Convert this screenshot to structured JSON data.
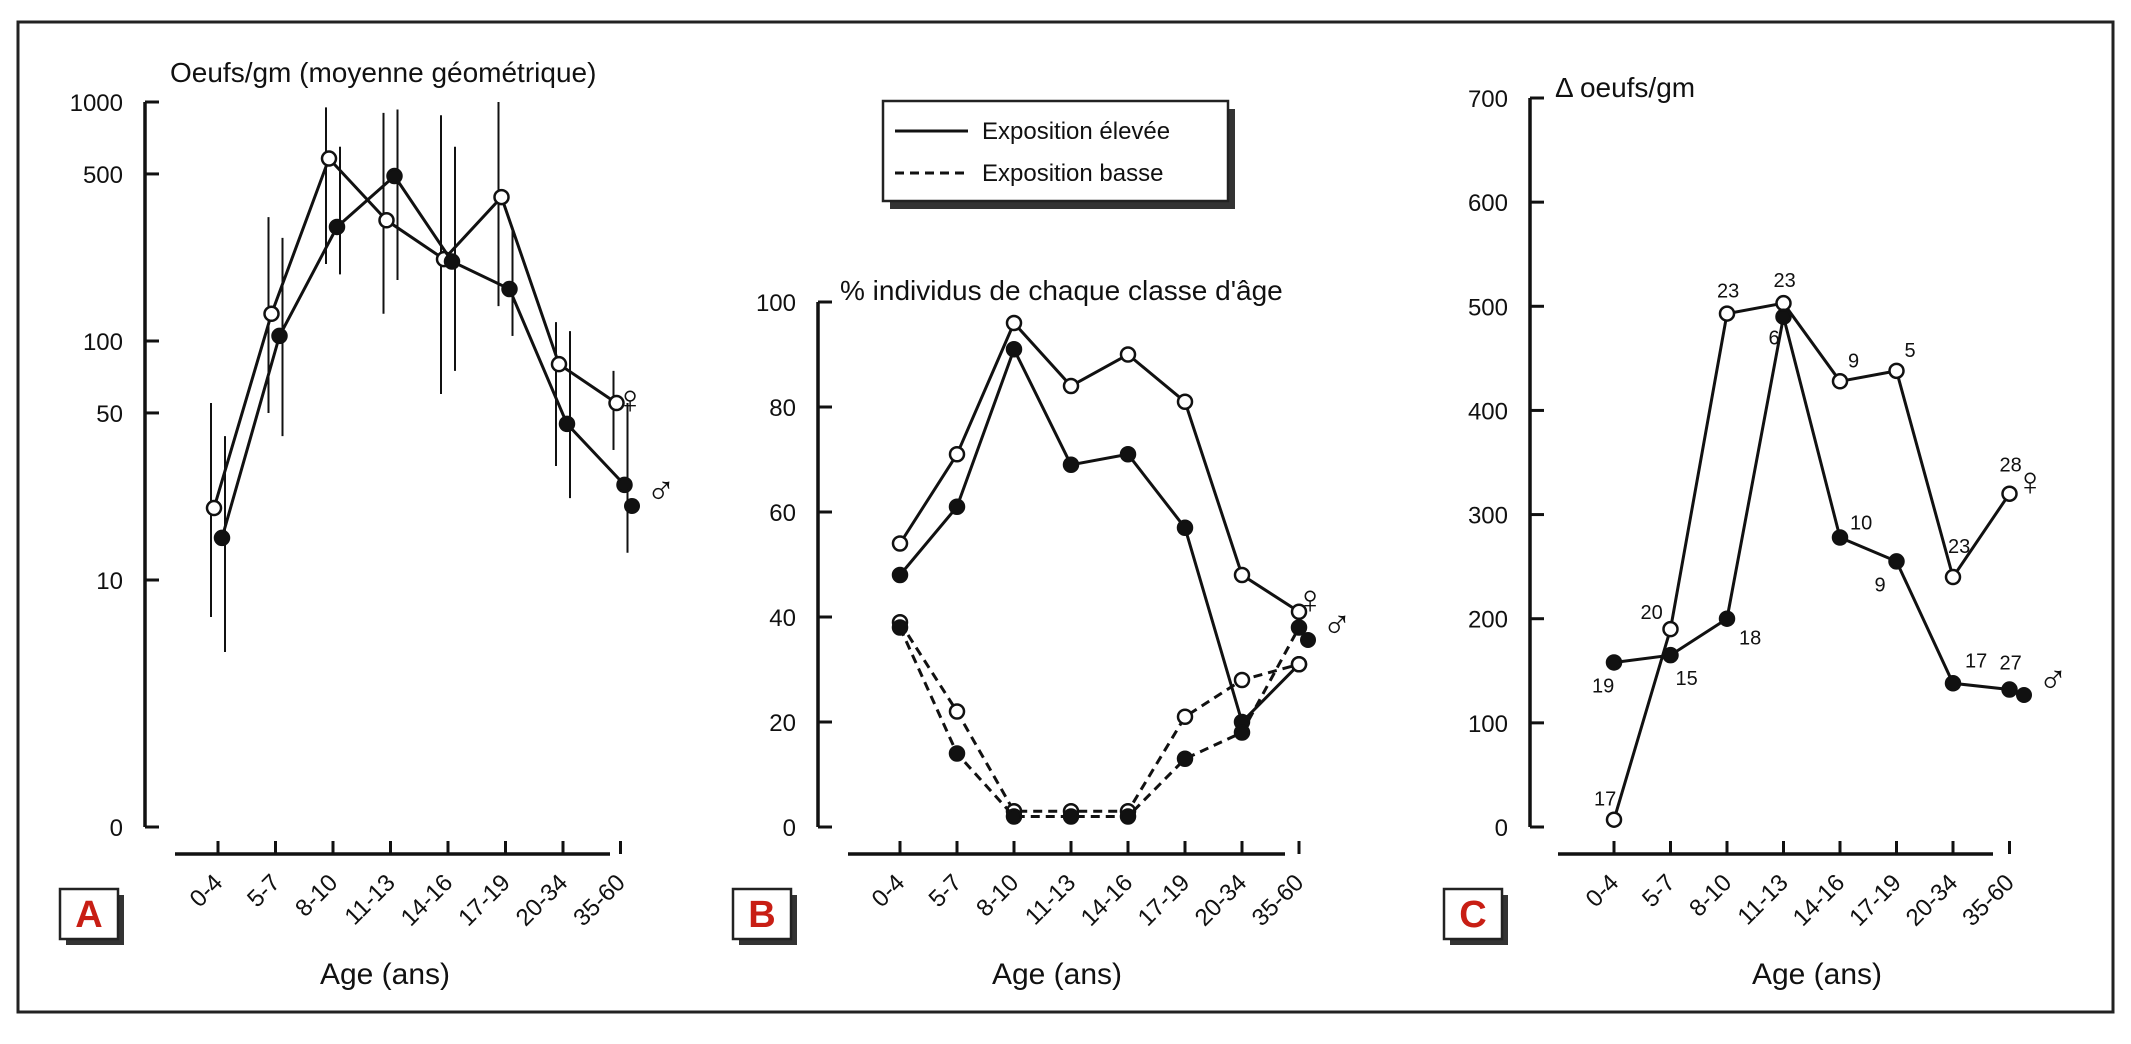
{
  "figure_frame": "single bordered figure with three panels A, B, C",
  "chart_data": [
    {
      "panel": "A",
      "type": "line",
      "title": "Oeufs/gm (moyenne géométrique)",
      "xlabel": "Age (ans)",
      "ylabel": "Oeufs/gm (moyenne géométrique)",
      "yscale": "log",
      "ylim": [
        0,
        1000
      ],
      "yticks": [
        {
          "v": 0,
          "label": "0"
        },
        {
          "v": 10,
          "label": "10"
        },
        {
          "v": 50,
          "label": "50"
        },
        {
          "v": 100,
          "label": "100"
        },
        {
          "v": 500,
          "label": "500"
        },
        {
          "v": 1000,
          "label": "1000"
        }
      ],
      "categories": [
        "0-4",
        "5-7",
        "8-10",
        "11-13",
        "14-16",
        "17-19",
        "20-34",
        "35-60"
      ],
      "series": [
        {
          "name": "♀",
          "marker": "open",
          "values": [
            20,
            130,
            580,
            320,
            220,
            400,
            80,
            55
          ],
          "err_low": [
            7,
            50,
            210,
            130,
            60,
            140,
            30,
            35
          ],
          "err_high": [
            55,
            330,
            950,
            900,
            880,
            1000,
            120,
            75
          ]
        },
        {
          "name": "♂",
          "marker": "filled",
          "values": [
            15,
            105,
            300,
            490,
            215,
            165,
            45,
            25
          ],
          "err_low": [
            5,
            40,
            190,
            180,
            75,
            105,
            22,
            13
          ],
          "err_high": [
            40,
            270,
            650,
            930,
            650,
            300,
            110,
            55
          ]
        }
      ],
      "legend": {
        "female_symbol": "♀",
        "male_symbol": "♂"
      }
    },
    {
      "panel": "B",
      "type": "line",
      "title": "% individus de chaque classe d'âge",
      "xlabel": "Age (ans)",
      "ylabel": "% individus de chaque classe d'âge",
      "ylim": [
        0,
        100
      ],
      "yticks": [
        0,
        20,
        40,
        60,
        80,
        100
      ],
      "categories": [
        "0-4",
        "5-7",
        "8-10",
        "11-13",
        "14-16",
        "17-19",
        "20-34",
        "35-60"
      ],
      "legend_entries": [
        "Exposition élevée",
        "Exposition basse"
      ],
      "series": [
        {
          "name": "Exposition élevée ♀",
          "marker": "open",
          "style": "solid",
          "values": [
            54,
            71,
            96,
            84,
            90,
            81,
            48,
            41
          ]
        },
        {
          "name": "Exposition élevée ♂",
          "marker": "filled",
          "style": "solid",
          "values": [
            48,
            61,
            91,
            69,
            71,
            57,
            20,
            31
          ]
        },
        {
          "name": "Exposition basse ♀",
          "marker": "open",
          "style": "dashed",
          "values": [
            39,
            22,
            3,
            3,
            3,
            21,
            28,
            31
          ]
        },
        {
          "name": "Exposition basse ♂",
          "marker": "filled",
          "style": "dashed",
          "values": [
            38,
            14,
            2,
            2,
            2,
            13,
            18,
            38
          ]
        }
      ],
      "legend": {
        "female_symbol": "♀",
        "male_symbol": "♂"
      }
    },
    {
      "panel": "C",
      "type": "line",
      "title": "Δ oeufs/gm",
      "xlabel": "Age (ans)",
      "ylabel": "Δ oeufs/gm",
      "ylim": [
        0,
        700
      ],
      "yticks": [
        0,
        100,
        200,
        300,
        400,
        500,
        600,
        700
      ],
      "categories": [
        "0-4",
        "5-7",
        "8-10",
        "11-13",
        "14-16",
        "17-19",
        "20-34",
        "35-60"
      ],
      "series": [
        {
          "name": "♀",
          "marker": "open",
          "values": [
            7,
            190,
            493,
            503,
            428,
            438,
            240,
            320
          ],
          "point_labels": [
            "17",
            "20",
            "23",
            "23",
            "9",
            "5",
            "23",
            "28"
          ]
        },
        {
          "name": "♂",
          "marker": "filled",
          "values": [
            158,
            165,
            200,
            490,
            278,
            255,
            138,
            132
          ],
          "point_labels": [
            "19",
            "15",
            "18",
            "6",
            "10",
            "9",
            "17",
            "27"
          ]
        }
      ],
      "legend": {
        "female_symbol": "♀",
        "male_symbol": "♂"
      }
    }
  ]
}
